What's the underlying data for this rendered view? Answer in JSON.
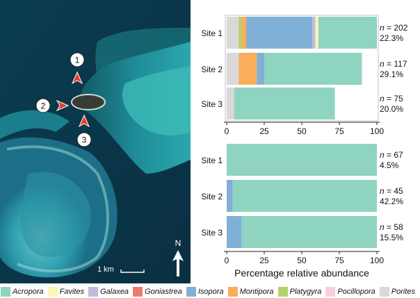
{
  "map": {
    "markers": [
      "1",
      "2",
      "3"
    ],
    "scale_label": "1 km",
    "north_label": "N"
  },
  "chart_data": [
    {
      "type": "bar",
      "orientation": "horizontal",
      "stacked": true,
      "categories": [
        "Site 1",
        "Site 2",
        "Site 3"
      ],
      "series": [
        {
          "name": "Porites",
          "values": [
            8,
            8,
            5
          ]
        },
        {
          "name": "Platygyra",
          "values": [
            2,
            0,
            0
          ]
        },
        {
          "name": "Montipora",
          "values": [
            3,
            12,
            0
          ]
        },
        {
          "name": "Goniastrea",
          "values": [
            0,
            0,
            0
          ]
        },
        {
          "name": "Isopora",
          "values": [
            44,
            5,
            0
          ]
        },
        {
          "name": "Galaxea",
          "values": [
            2,
            0,
            0
          ]
        },
        {
          "name": "Favites",
          "values": [
            2,
            0,
            0
          ]
        },
        {
          "name": "Acropora",
          "values": [
            39,
            65,
            67
          ]
        }
      ],
      "annotations": [
        {
          "n": "202",
          "pct": "22.3%"
        },
        {
          "n": "117",
          "pct": "29.1%"
        },
        {
          "n": "75",
          "pct": "20.0%"
        }
      ],
      "xlim": [
        0,
        100
      ],
      "xticks": [
        0,
        25,
        50,
        75,
        100
      ],
      "xlabel": "",
      "grid": false
    },
    {
      "type": "bar",
      "orientation": "horizontal",
      "stacked": true,
      "categories": [
        "Site 1",
        "Site 2",
        "Site 3"
      ],
      "series": [
        {
          "name": "Isopora",
          "values": [
            0,
            4,
            10
          ]
        },
        {
          "name": "Acropora",
          "values": [
            100,
            96,
            90
          ]
        }
      ],
      "annotations": [
        {
          "n": "67",
          "pct": "4.5%"
        },
        {
          "n": "45",
          "pct": "42.2%"
        },
        {
          "n": "58",
          "pct": "15.5%"
        }
      ],
      "xlim": [
        0,
        100
      ],
      "xticks": [
        0,
        25,
        50,
        75,
        100
      ],
      "xlabel": "Percentage relative abundance",
      "grid": false
    }
  ],
  "legend": [
    {
      "name": "Acropora",
      "color": "#8fd3c1"
    },
    {
      "name": "Favites",
      "color": "#fbf6b4"
    },
    {
      "name": "Galaxea",
      "color": "#c3b9dc"
    },
    {
      "name": "Goniastrea",
      "color": "#f07a6e"
    },
    {
      "name": "Isopora",
      "color": "#80b0d6"
    },
    {
      "name": "Montipora",
      "color": "#f8ae5a"
    },
    {
      "name": "Platygyra",
      "color": "#b0d36a"
    },
    {
      "name": "Pocillopora",
      "color": "#f8cfe1"
    },
    {
      "name": "Porites",
      "color": "#d9d9d9"
    }
  ],
  "n_prefix": "n",
  "n_equals": " = "
}
